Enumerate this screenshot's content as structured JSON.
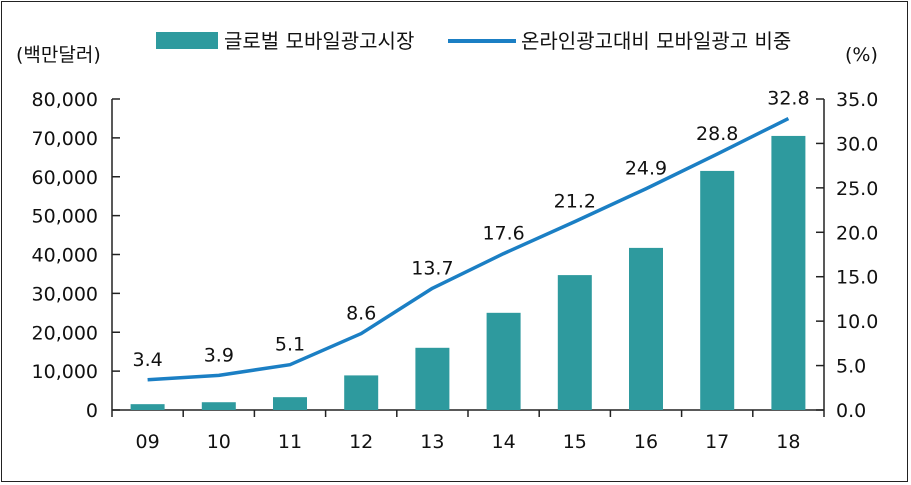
{
  "chart_data": {
    "type": "bar+line",
    "left_unit": "(백만달러)",
    "right_unit": "(%)",
    "categories": [
      "09",
      "10",
      "11",
      "12",
      "13",
      "14",
      "15",
      "16",
      "17",
      "18"
    ],
    "series": [
      {
        "name": "글로벌 모바일광고시장",
        "type": "bar",
        "axis": "left",
        "color": "#2e9a9e",
        "values": [
          1500,
          2000,
          3300,
          8900,
          16000,
          25000,
          34700,
          41700,
          61500,
          70500
        ]
      },
      {
        "name": "온라인광고대비 모바일광고 비중",
        "type": "line",
        "axis": "right",
        "color": "#1b7fc4",
        "values": [
          3.4,
          3.9,
          5.1,
          8.6,
          13.7,
          17.6,
          21.2,
          24.9,
          28.8,
          32.8
        ],
        "value_labels": [
          "3.4",
          "3.9",
          "5.1",
          "8.6",
          "13.7",
          "17.6",
          "21.2",
          "24.9",
          "28.8",
          "32.8"
        ]
      }
    ],
    "left_axis": {
      "range": [
        0,
        80000
      ],
      "tick_values": [
        0,
        10000,
        20000,
        30000,
        40000,
        50000,
        60000,
        70000,
        80000
      ],
      "tick_labels": [
        "0",
        "10,000",
        "20,000",
        "30,000",
        "40,000",
        "50,000",
        "60,000",
        "70,000",
        "80,000"
      ]
    },
    "right_axis": {
      "range": [
        0,
        35
      ],
      "tick_values": [
        0,
        5,
        10,
        15,
        20,
        25,
        30,
        35
      ],
      "tick_labels": [
        "0.0",
        "5.0",
        "10.0",
        "15.0",
        "20.0",
        "25.0",
        "30.0",
        "35.0"
      ]
    },
    "legend": "top",
    "grid": false
  }
}
